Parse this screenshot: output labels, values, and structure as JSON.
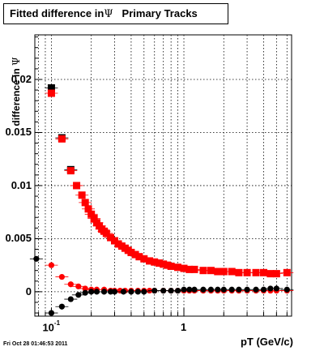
{
  "chart_data": {
    "type": "scatter",
    "title_prefix": "Fitted difference in",
    "title_symbol": "Ψ",
    "title_suffix": "Primary Tracks",
    "ylabel_prefix": "difference in",
    "ylabel_symbol": "Ψ",
    "xlabel": "pT (GeV/c)",
    "xscale": "log",
    "xlim": [
      0.075,
      6.5
    ],
    "ylim": [
      -0.0023,
      0.0242
    ],
    "grid": true,
    "ytick_labels": [
      {
        "value": 0,
        "label": "0"
      },
      {
        "value": 0.005,
        "label": "0.005"
      },
      {
        "value": 0.01,
        "label": "0.01"
      },
      {
        "value": 0.015,
        "label": "0.015"
      },
      {
        "value": 0.02,
        "label": "0.02"
      }
    ],
    "xtick_labels": [
      {
        "value": 0.1,
        "base": "10",
        "exp": "-1"
      },
      {
        "value": 1,
        "base": "1",
        "exp": ""
      }
    ],
    "series": [
      {
        "marker": "square",
        "color": "#000000",
        "x": [
          0.1,
          0.12,
          0.14
        ],
        "y": [
          0.0192,
          0.0145,
          0.0115
        ]
      },
      {
        "marker": "square",
        "color": "#ff0000",
        "x": [
          0.1,
          0.12,
          0.14,
          0.155,
          0.17,
          0.18,
          0.19,
          0.2,
          0.21,
          0.22,
          0.23,
          0.24,
          0.25,
          0.26,
          0.28,
          0.3,
          0.32,
          0.34,
          0.36,
          0.38,
          0.4,
          0.43,
          0.46,
          0.5,
          0.55,
          0.6,
          0.65,
          0.7,
          0.75,
          0.8,
          0.9,
          1.0,
          1.1,
          1.2,
          1.4,
          1.6,
          1.8,
          2.0,
          2.3,
          2.6,
          3.0,
          3.5,
          4.0,
          4.5,
          5.0,
          6.0
        ],
        "y": [
          0.0187,
          0.0144,
          0.0114,
          0.01,
          0.0091,
          0.0084,
          0.0078,
          0.0073,
          0.0069,
          0.0065,
          0.0062,
          0.0059,
          0.0057,
          0.0055,
          0.0051,
          0.0048,
          0.0045,
          0.0043,
          0.0041,
          0.0039,
          0.0037,
          0.0035,
          0.0033,
          0.0031,
          0.0029,
          0.0028,
          0.0027,
          0.0026,
          0.0025,
          0.0024,
          0.0023,
          0.0022,
          0.0021,
          0.0021,
          0.002,
          0.002,
          0.0019,
          0.0019,
          0.0019,
          0.0018,
          0.0018,
          0.0018,
          0.0018,
          0.0017,
          0.0017,
          0.0018
        ]
      },
      {
        "marker": "circle",
        "color": "#ff0000",
        "x": [
          0.1,
          0.12,
          0.14,
          0.16,
          0.18,
          0.2,
          0.22,
          0.25,
          0.28,
          0.3,
          0.33,
          0.36,
          0.4,
          0.45,
          0.5,
          0.55,
          0.6,
          0.7,
          0.8,
          0.9,
          1.0,
          1.1,
          1.2,
          1.4,
          1.6,
          1.8,
          2.0,
          2.3,
          2.6,
          3.0,
          3.5,
          4.0,
          4.5,
          5.0,
          6.0
        ],
        "y": [
          0.0025,
          0.0014,
          0.0007,
          0.0005,
          0.0003,
          0.0002,
          0.0002,
          0.0002,
          0.0001,
          0.0001,
          0.0001,
          0.0001,
          0.0001,
          0.0001,
          0.0001,
          0.0001,
          0.0001,
          0.0001,
          0.0001,
          0.0001,
          0.0001,
          0.0001,
          0.0001,
          0.0001,
          0.0001,
          0.0001,
          0.0001,
          0.0001,
          0.0001,
          0.0001,
          0.0001,
          0.0001,
          0.0001,
          0.0001,
          0.0001
        ]
      },
      {
        "marker": "circle",
        "color": "#000000",
        "x": [
          0.077,
          0.1,
          0.12,
          0.14,
          0.16,
          0.18,
          0.2,
          0.22,
          0.25,
          0.28,
          0.3,
          0.35,
          0.4,
          0.45,
          0.5,
          0.6,
          0.7,
          0.8,
          0.9,
          1.0,
          1.1,
          1.2,
          1.4,
          1.6,
          1.8,
          2.0,
          2.3,
          2.6,
          3.0,
          3.5,
          4.0,
          4.5,
          5.0,
          6.0
        ],
        "y": [
          0.0031,
          -0.002,
          -0.0014,
          -0.0007,
          -0.0003,
          -0.0001,
          0.0,
          0.0,
          0.0,
          0.0,
          0.0,
          0.0,
          0.0,
          0.0,
          0.0,
          0.0001,
          0.0001,
          0.0001,
          0.0001,
          0.0002,
          0.0002,
          0.0002,
          0.0002,
          0.0002,
          0.0002,
          0.0002,
          0.0002,
          0.0002,
          0.0002,
          0.0002,
          0.0002,
          0.0003,
          0.0003,
          0.0002
        ]
      }
    ]
  },
  "footer": {
    "datestamp": "Fri Oct 28 01:46:53 2011"
  }
}
